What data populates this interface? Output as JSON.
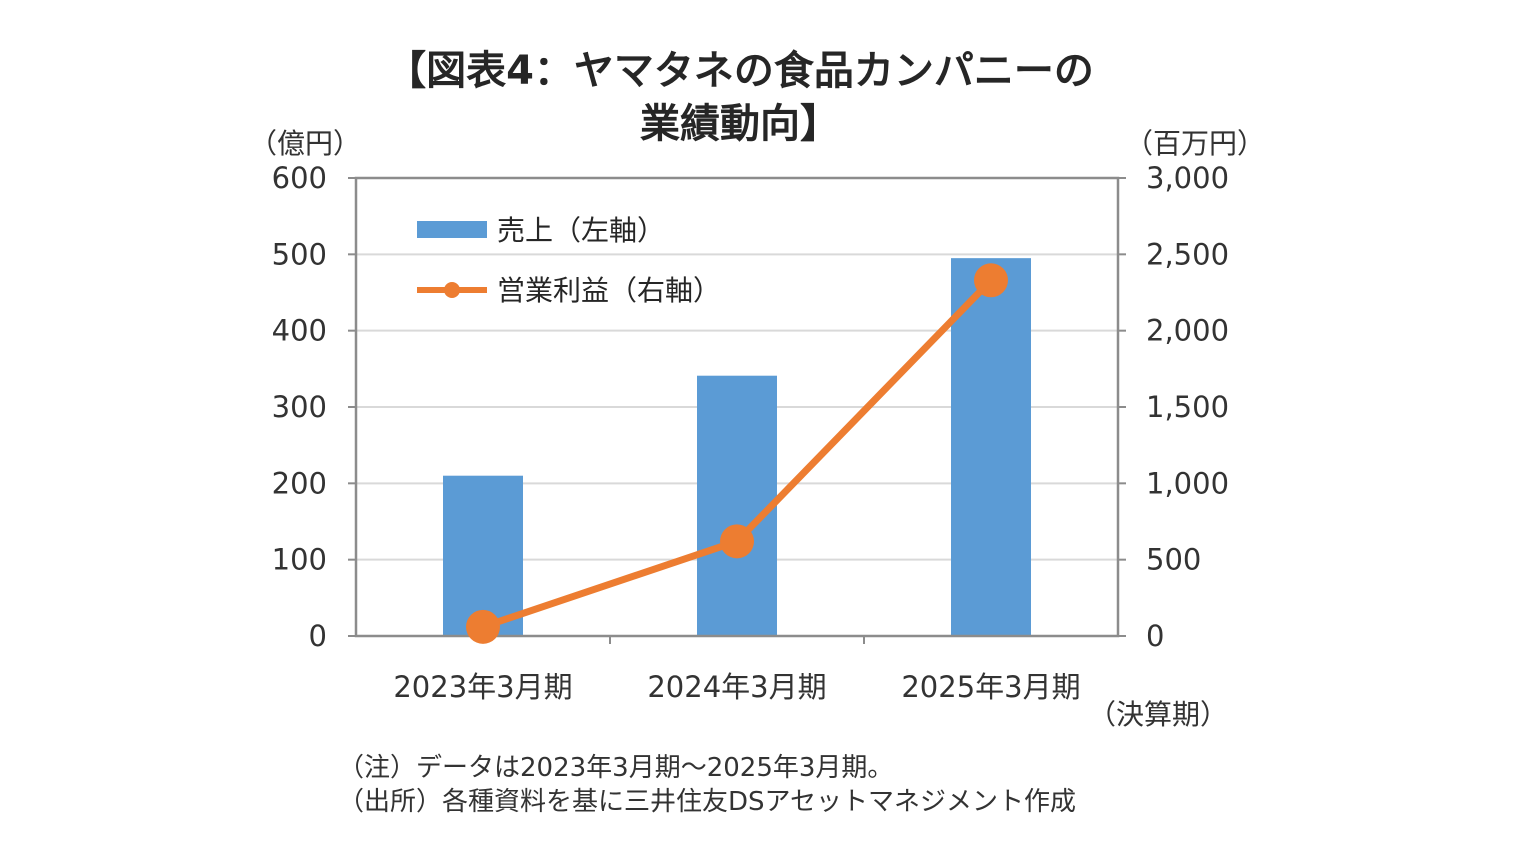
{
  "title_line1": "【図表4：ヤマタネの食品カンパニーの",
  "title_line2": "業績動向】",
  "left_unit": "（億円）",
  "right_unit": "（百万円）",
  "x_unit": "（決算期）",
  "notes": [
    "（注）データは2023年3月期～2025年3月期。",
    "（出所）各種資料を基に三井住友DSアセットマネジメント作成"
  ],
  "chart_data": {
    "type": "bar+line",
    "categories": [
      "2023年3月期",
      "2024年3月期",
      "2025年3月期"
    ],
    "series": [
      {
        "name": "売上（左軸）",
        "type": "bar",
        "axis": "left",
        "color": "#5b9bd5",
        "values": [
          210,
          341,
          495
        ]
      },
      {
        "name": "営業利益（右軸）",
        "type": "line",
        "axis": "right",
        "color": "#ed7d31",
        "values": [
          60,
          620,
          2330
        ]
      }
    ],
    "y_left": {
      "min": 0,
      "max": 600,
      "step": 100,
      "tick_labels": [
        "0",
        "100",
        "200",
        "300",
        "400",
        "500",
        "600"
      ]
    },
    "y_right": {
      "min": 0,
      "max": 3000,
      "step": 500,
      "tick_labels": [
        "0",
        "500",
        "1,000",
        "1,500",
        "2,000",
        "2,500",
        "3,000"
      ]
    },
    "grid": true,
    "legend_position": "top-left"
  }
}
